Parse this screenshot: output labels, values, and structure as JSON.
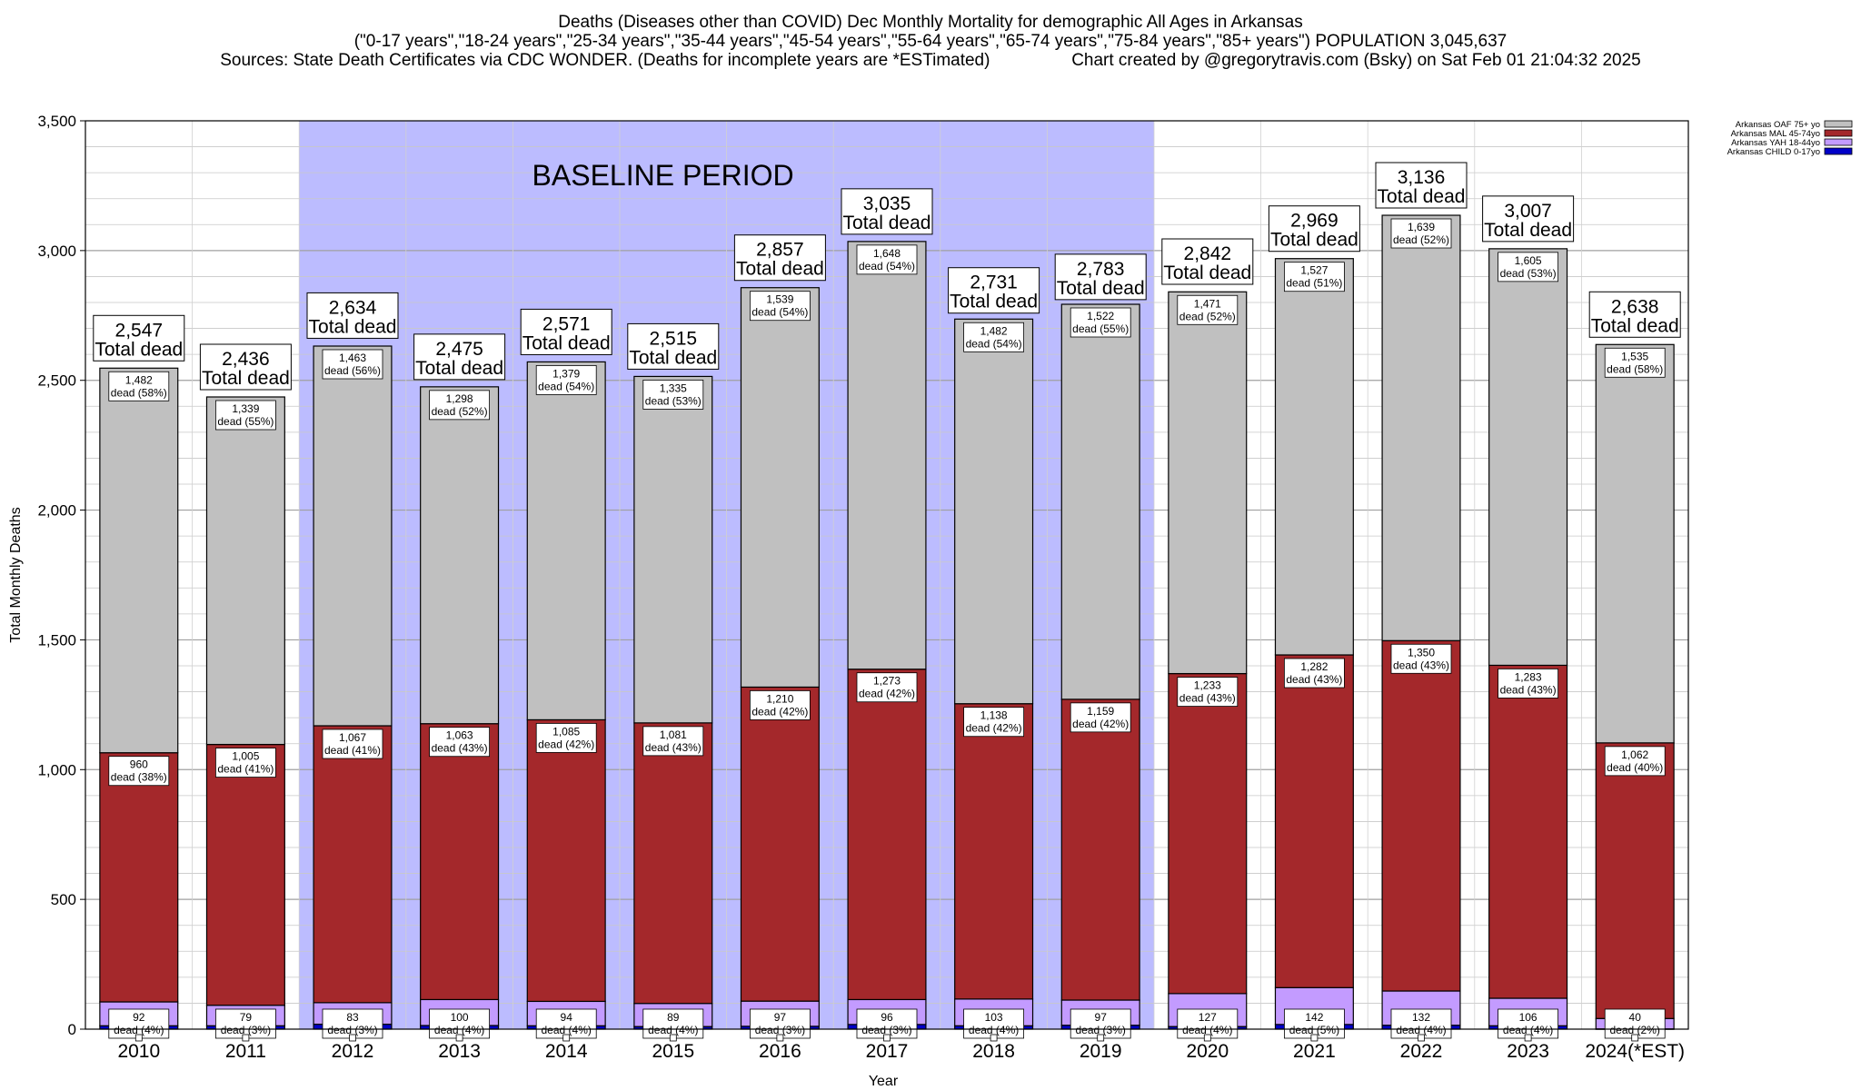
{
  "header": {
    "title_line1": "Deaths (Diseases other than COVID) Dec Monthly Mortality for demographic All Ages in Arkansas",
    "title_line2": "(\"0-17 years\",\"18-24 years\",\"25-34 years\",\"35-44 years\",\"45-54 years\",\"55-64 years\",\"65-74 years\",\"75-84 years\",\"85+ years\") POPULATION 3,045,637",
    "title_line3": "Sources: State Death Certificates via CDC WONDER. (Deaths for incomplete years are *ESTimated)                 Chart created by @gregorytravis.com (Bsky) on Sat Feb 01 21:04:32 2025"
  },
  "chart_data": {
    "type": "bar",
    "stacked": true,
    "xlabel": "Year",
    "ylabel": "Total Monthly Deaths",
    "ylim": [
      0,
      3500
    ],
    "y_ticks": [
      0,
      500,
      1000,
      1500,
      2000,
      2500,
      3000,
      3500
    ],
    "y_tick_labels": [
      "0",
      "500",
      "1,000",
      "1,500",
      "2,000",
      "2,500",
      "3,000",
      "3,500"
    ],
    "grid": true,
    "categories": [
      "2010",
      "2011",
      "2012",
      "2013",
      "2014",
      "2015",
      "2016",
      "2017",
      "2018",
      "2019",
      "2020",
      "2021",
      "2022",
      "2023",
      "2024(*EST)"
    ],
    "baseline_period": {
      "label": "BASELINE PERIOD",
      "from": "2012",
      "to": "2019",
      "color": "#bcbcff"
    },
    "totals": [
      2547,
      2436,
      2634,
      2475,
      2571,
      2515,
      2857,
      3035,
      2731,
      2783,
      2842,
      2969,
      3136,
      3007,
      2638
    ],
    "total_labels": [
      "2,547",
      "2,436",
      "2,634",
      "2,475",
      "2,571",
      "2,515",
      "2,857",
      "3,035",
      "2,731",
      "2,783",
      "2,842",
      "2,969",
      "3,136",
      "3,007",
      "2,638"
    ],
    "total_suffix": "Total dead",
    "legend_position": "top-right",
    "series": [
      {
        "name": "Arkansas CHILD 0-17yo",
        "color": "#0000c8",
        "values": [
          13,
          13,
          19,
          14,
          13,
          10,
          11,
          18,
          13,
          15,
          10,
          18,
          15,
          13,
          1
        ]
      },
      {
        "name": "Arkansas YAH 18-44yo",
        "color": "#c39bff",
        "values": [
          92,
          79,
          83,
          100,
          94,
          89,
          97,
          96,
          103,
          97,
          127,
          142,
          132,
          106,
          40
        ],
        "labels": [
          "92",
          "79",
          "83",
          "100",
          "94",
          "89",
          "97",
          "96",
          "103",
          "97",
          "127",
          "142",
          "132",
          "106",
          "40"
        ],
        "pct": [
          "dead (4%)",
          "dead (3%)",
          "dead (3%)",
          "dead (4%)",
          "dead (4%)",
          "dead (4%)",
          "dead (3%)",
          "dead (3%)",
          "dead (4%)",
          "dead (3%)",
          "dead (4%)",
          "dead (5%)",
          "dead (4%)",
          "dead (4%)",
          "dead (2%)"
        ]
      },
      {
        "name": "Arkansas MAL 45-74yo",
        "color": "#a4282b",
        "values": [
          960,
          1005,
          1067,
          1063,
          1085,
          1081,
          1210,
          1273,
          1138,
          1159,
          1233,
          1282,
          1350,
          1283,
          1062
        ],
        "labels": [
          "960",
          "1,005",
          "1,067",
          "1,063",
          "1,085",
          "1,081",
          "1,210",
          "1,273",
          "1,138",
          "1,159",
          "1,233",
          "1,282",
          "1,350",
          "1,283",
          "1,062"
        ],
        "pct": [
          "dead (38%)",
          "dead (41%)",
          "dead (41%)",
          "dead (43%)",
          "dead (42%)",
          "dead (43%)",
          "dead (42%)",
          "dead (42%)",
          "dead (42%)",
          "dead (42%)",
          "dead (43%)",
          "dead (43%)",
          "dead (43%)",
          "dead (43%)",
          "dead (40%)"
        ]
      },
      {
        "name": "Arkansas OAF 75+ yo",
        "color": "#c0c0c0",
        "values": [
          1482,
          1339,
          1463,
          1298,
          1379,
          1335,
          1539,
          1648,
          1482,
          1522,
          1471,
          1527,
          1639,
          1605,
          1535
        ],
        "labels": [
          "1,482",
          "1,339",
          "1,463",
          "1,298",
          "1,379",
          "1,335",
          "1,539",
          "1,648",
          "1,482",
          "1,522",
          "1,471",
          "1,527",
          "1,639",
          "1,605",
          "1,535"
        ],
        "pct": [
          "dead (58%)",
          "dead (55%)",
          "dead (56%)",
          "dead (52%)",
          "dead (54%)",
          "dead (53%)",
          "dead (54%)",
          "dead (54%)",
          "dead (54%)",
          "dead (55%)",
          "dead (52%)",
          "dead (51%)",
          "dead (52%)",
          "dead (53%)",
          "dead (58%)"
        ]
      }
    ]
  }
}
